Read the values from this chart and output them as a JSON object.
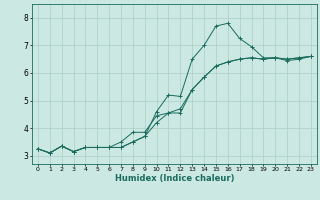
{
  "xlabel": "Humidex (Indice chaleur)",
  "xlim": [
    -0.5,
    23.5
  ],
  "ylim": [
    2.7,
    8.5
  ],
  "yticks": [
    3,
    4,
    5,
    6,
    7,
    8
  ],
  "xticks": [
    0,
    1,
    2,
    3,
    4,
    5,
    6,
    7,
    8,
    9,
    10,
    11,
    12,
    13,
    14,
    15,
    16,
    17,
    18,
    19,
    20,
    21,
    22,
    23
  ],
  "background_color": "#cce8e2",
  "line_color": "#1a6b5e",
  "grid_color": "#aacfc8",
  "series": [
    {
      "x": [
        0,
        1,
        2,
        3,
        4,
        5,
        6,
        7,
        8,
        9,
        10,
        11,
        12,
        13,
        14,
        15,
        16,
        17,
        18,
        19,
        20,
        21,
        22,
        23
      ],
      "y": [
        3.25,
        3.1,
        3.35,
        3.15,
        3.3,
        3.3,
        3.3,
        3.3,
        3.5,
        3.7,
        4.6,
        5.2,
        5.15,
        6.5,
        7.0,
        7.7,
        7.8,
        7.25,
        6.95,
        6.55,
        6.55,
        6.45,
        6.5,
        6.6
      ]
    },
    {
      "x": [
        0,
        1,
        2,
        3,
        4,
        5,
        6,
        7,
        8,
        9,
        10,
        11,
        12,
        13,
        14,
        15,
        16,
        17,
        18,
        19,
        20,
        21,
        22,
        23
      ],
      "y": [
        3.25,
        3.1,
        3.35,
        3.15,
        3.3,
        3.3,
        3.3,
        3.3,
        3.5,
        3.7,
        4.2,
        4.55,
        4.7,
        5.4,
        5.85,
        6.25,
        6.4,
        6.5,
        6.55,
        6.5,
        6.55,
        6.5,
        6.55,
        6.6
      ]
    },
    {
      "x": [
        0,
        1,
        2,
        3,
        4,
        5,
        6,
        7,
        8,
        9,
        10,
        11,
        12,
        13,
        14,
        15,
        16,
        17,
        18,
        19,
        20,
        21,
        22,
        23
      ],
      "y": [
        3.25,
        3.1,
        3.35,
        3.15,
        3.3,
        3.3,
        3.3,
        3.5,
        3.85,
        3.85,
        4.45,
        4.55,
        4.55,
        5.4,
        5.85,
        6.25,
        6.4,
        6.5,
        6.55,
        6.5,
        6.55,
        6.5,
        6.55,
        6.6
      ]
    }
  ]
}
